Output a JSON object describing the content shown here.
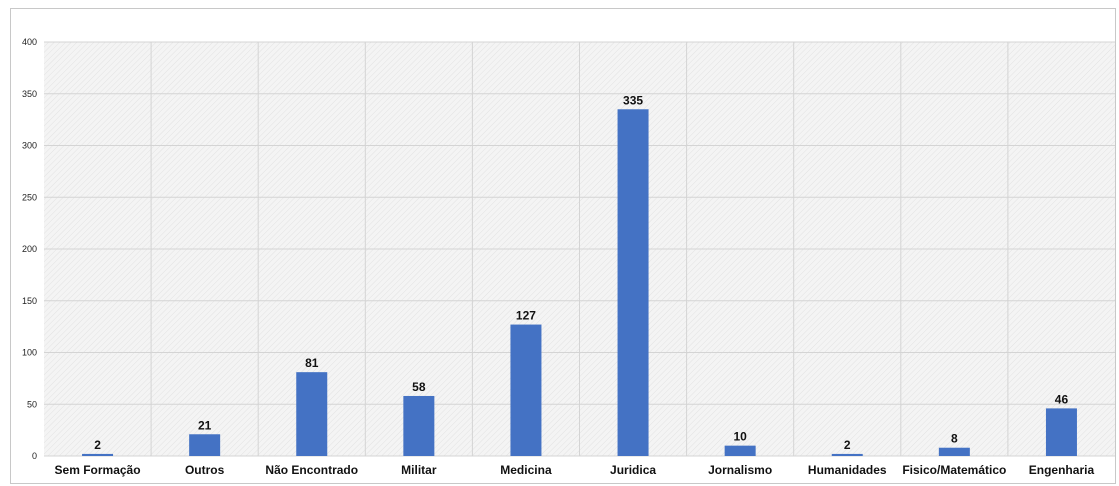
{
  "chart_data": {
    "type": "bar",
    "title": "",
    "xlabel": "",
    "ylabel": "",
    "categories": [
      "Sem Formação",
      "Outros",
      "Não Encontrado",
      "Militar",
      "Medicina",
      "Juridica",
      "Jornalismo",
      "Humanidades",
      "Fisico/Matemático",
      "Engenharia"
    ],
    "values": [
      2,
      21,
      81,
      58,
      127,
      335,
      10,
      2,
      8,
      46
    ],
    "ylim": [
      0,
      400
    ],
    "yticks": [
      0,
      50,
      100,
      150,
      200,
      250,
      300,
      350,
      400
    ],
    "grid": true,
    "legend": "none",
    "colors": {
      "bar": "#4472C4",
      "grid": "#d4d4d4",
      "plot_bg": "#f2f2f2"
    }
  }
}
